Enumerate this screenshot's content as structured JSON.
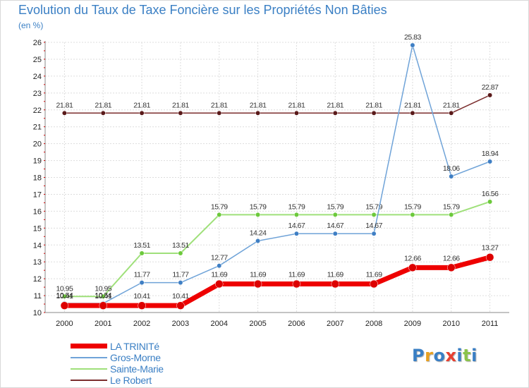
{
  "chart_data": {
    "type": "line",
    "title": "Evolution du Taux de Taxe Foncière sur les Propriétés Non Bâties",
    "unit": "(en %)",
    "x": [
      "2000",
      "2001",
      "2002",
      "2003",
      "2004",
      "2005",
      "2006",
      "2007",
      "2008",
      "2009",
      "2010",
      "2011"
    ],
    "ylim": [
      10,
      26
    ],
    "yticks": [
      10,
      11,
      12,
      13,
      14,
      15,
      16,
      17,
      18,
      19,
      20,
      21,
      22,
      23,
      24,
      25,
      26
    ],
    "grid": true,
    "series": [
      {
        "name": "Le Robert",
        "color": "#7b2e2e",
        "marker": "#5a1a1a",
        "width": 1.5,
        "values": [
          21.81,
          21.81,
          21.81,
          21.81,
          21.81,
          21.81,
          21.81,
          21.81,
          21.81,
          21.81,
          21.81,
          22.87
        ],
        "labels": [
          "21.81",
          "21.81",
          "21.81",
          "21.81",
          "21.81",
          "21.81",
          "21.81",
          "21.81",
          "21.81",
          "21.81",
          "21.81",
          "22.87"
        ]
      },
      {
        "name": "Sainte-Marie",
        "color": "#9fe07a",
        "marker": "#6cc93b",
        "width": 2,
        "values": [
          10.95,
          10.95,
          13.51,
          13.51,
          15.79,
          15.79,
          15.79,
          15.79,
          15.79,
          15.79,
          15.79,
          16.56
        ],
        "labels": [
          "10.95",
          "10.95",
          "13.51",
          "13.51",
          "15.79",
          "15.79",
          "15.79",
          "15.79",
          "15.79",
          "15.79",
          "15.79",
          "16.56"
        ]
      },
      {
        "name": "Gros-Morne",
        "color": "#6fa3d8",
        "marker": "#3f7fc4",
        "width": 1.5,
        "values": [
          10.54,
          10.54,
          11.77,
          11.77,
          12.77,
          14.24,
          14.67,
          14.67,
          14.67,
          25.83,
          18.06,
          18.94
        ],
        "labels": [
          "10.54",
          "10.54",
          "11.77",
          "11.77",
          "12.77",
          "14.24",
          "14.67",
          "14.67",
          "14.67",
          "25.83",
          "18.06",
          "18.94"
        ]
      },
      {
        "name": "LA TRINITé",
        "color": "#ee0000",
        "marker": "#dd0000",
        "width": 7,
        "values": [
          10.41,
          10.41,
          10.41,
          10.41,
          11.69,
          11.69,
          11.69,
          11.69,
          11.69,
          12.66,
          12.66,
          13.27
        ],
        "labels": [
          "10.41",
          "10.41",
          "10.41",
          "10.41",
          "11.69",
          "11.69",
          "11.69",
          "11.69",
          "11.69",
          "12.66",
          "12.66",
          "13.27"
        ]
      }
    ],
    "legend": [
      "LA TRINITé",
      "Gros-Morne",
      "Sainte-Marie",
      "Le Robert"
    ],
    "legend_position": "bottom-left"
  },
  "logo": {
    "letters": [
      "P",
      "r",
      "o",
      "x",
      "i",
      "t",
      "i"
    ],
    "colors": [
      "#3a7fc4",
      "#e8a020",
      "#3a7fc4",
      "#e84030",
      "#3a7fc4",
      "#8bc34a",
      "#3a7fc4"
    ]
  }
}
